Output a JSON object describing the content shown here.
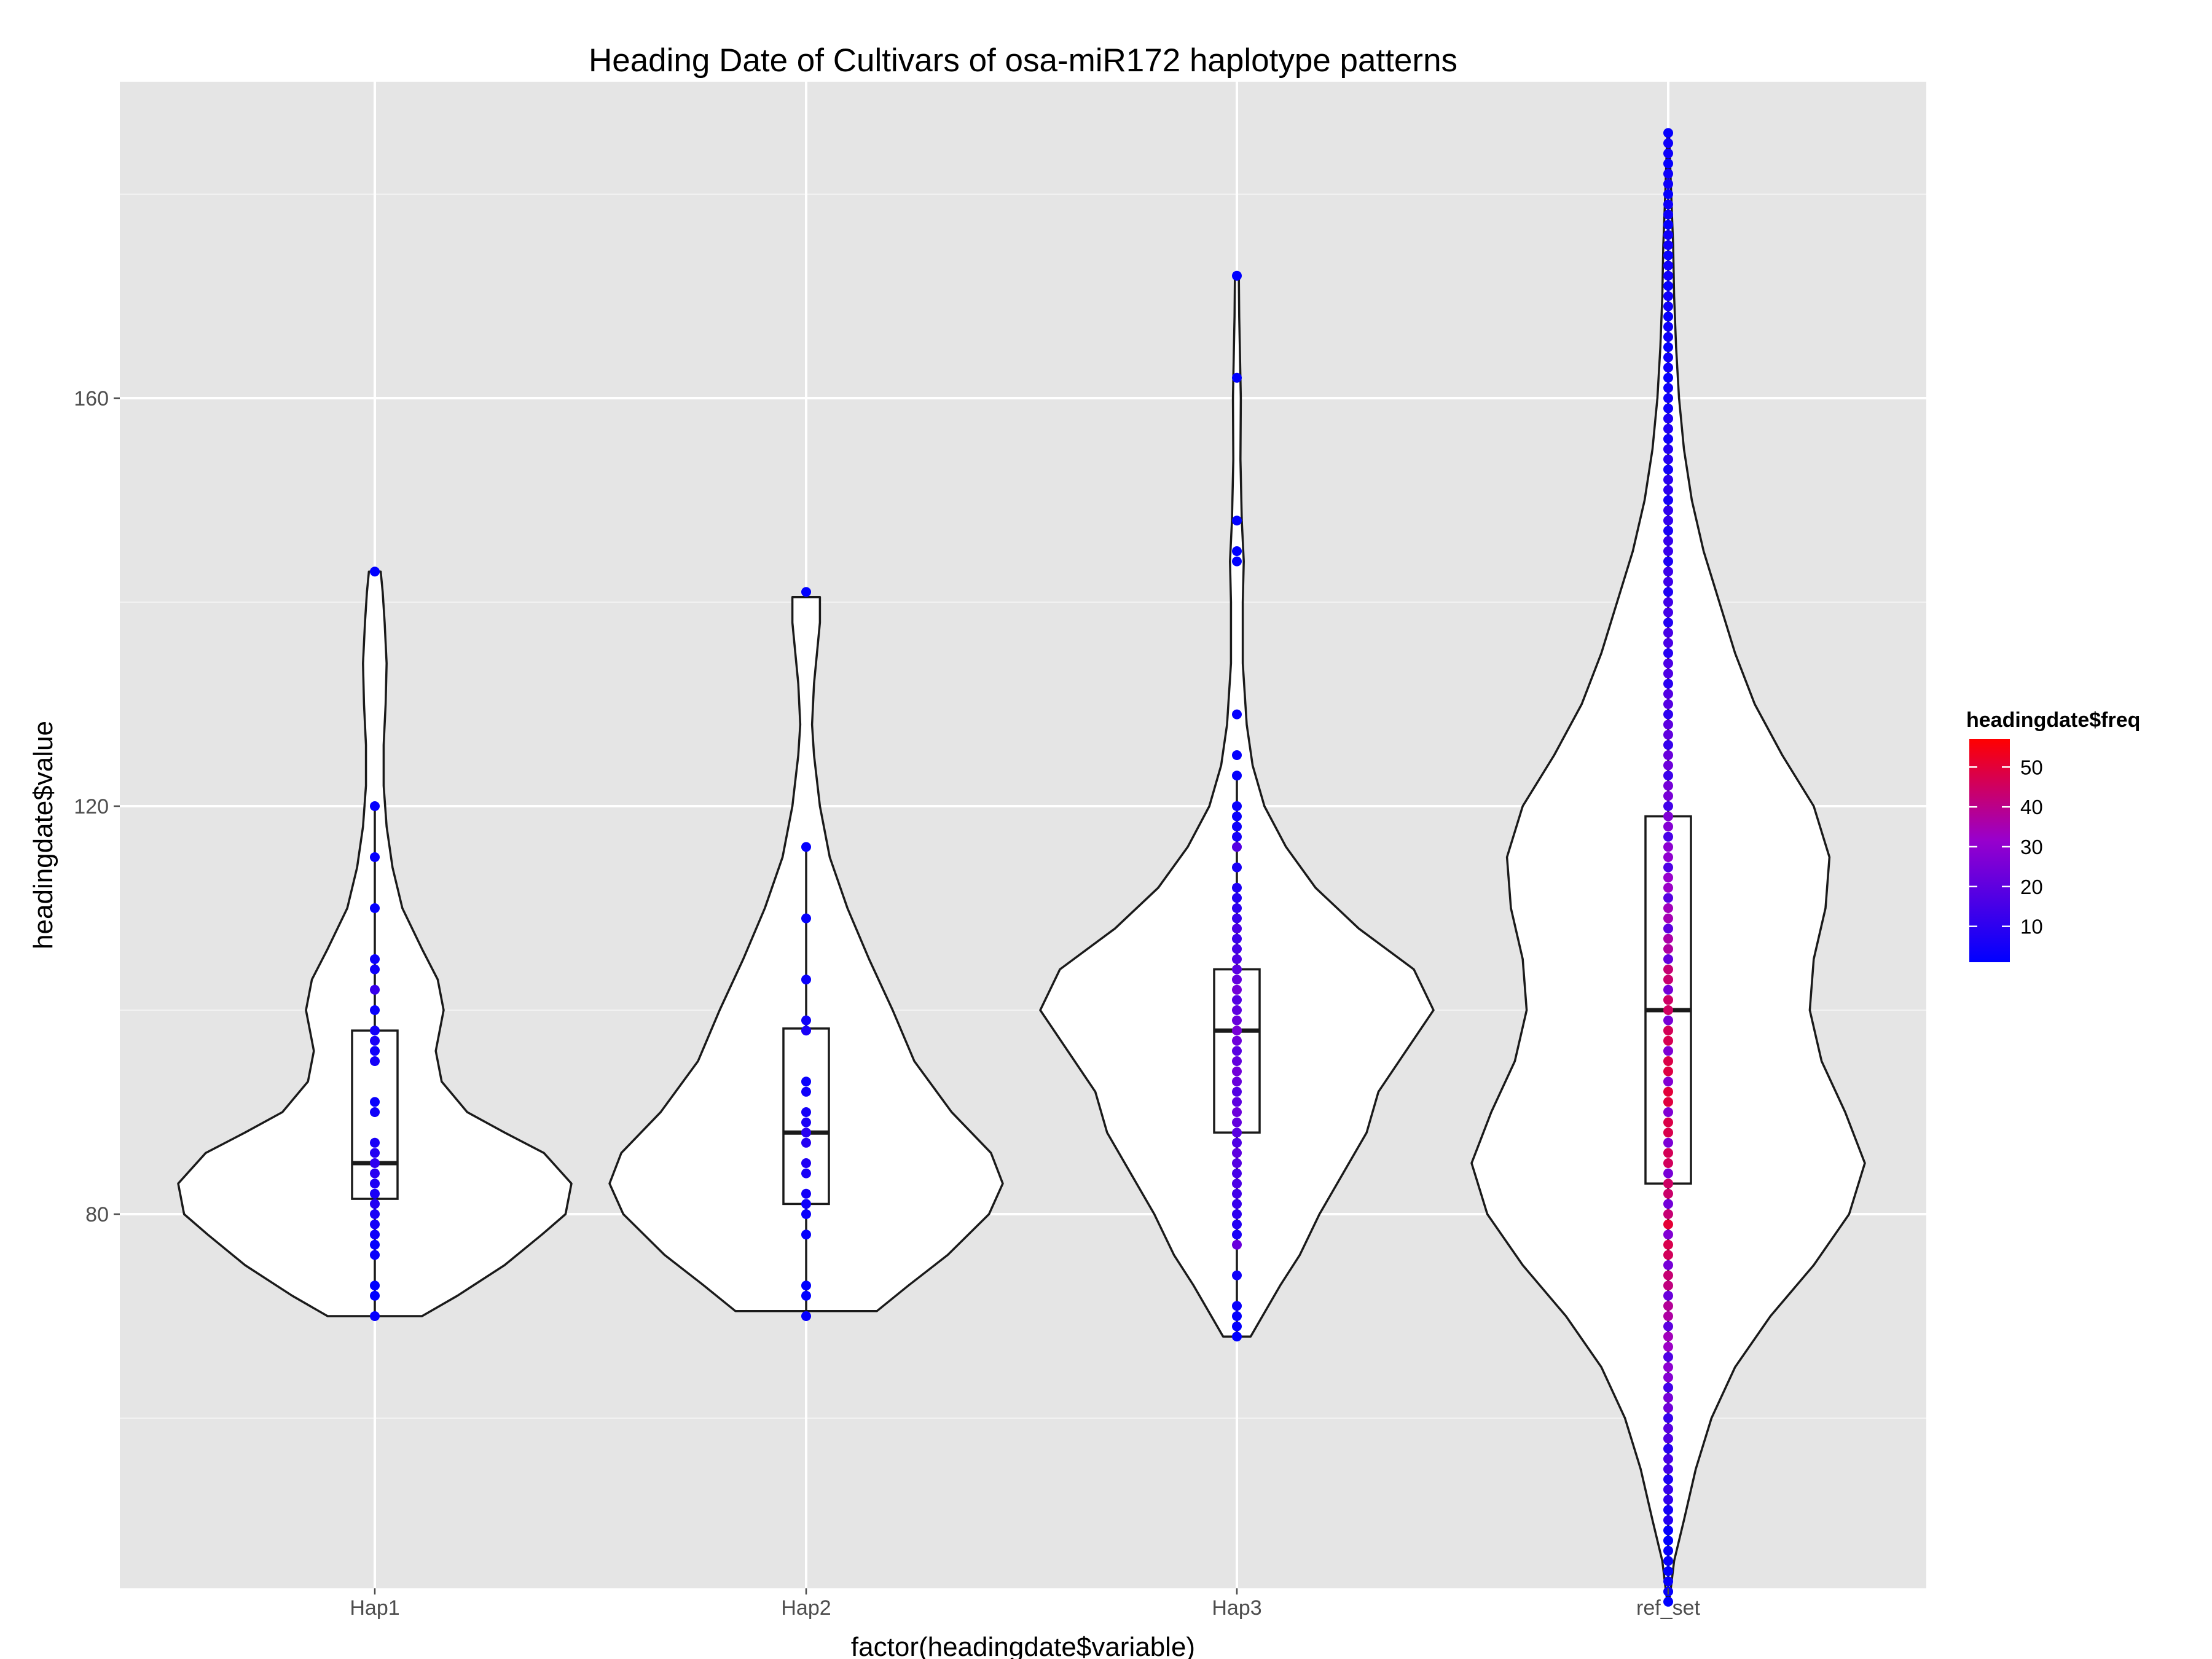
{
  "chart_data": {
    "type": "violin",
    "title": "Heading Date of Cultivars of osa-miR172 haplotype patterns",
    "xlabel": "factor(headingdate$variable)",
    "ylabel": "headingdate$value",
    "categories": [
      "Hap1",
      "Hap2",
      "Hap3",
      "ref_set"
    ],
    "y_ticks": [
      80,
      120,
      160
    ],
    "ylim": [
      42,
      190
    ],
    "grid": true,
    "legend": {
      "title": "headingdate$freq",
      "position": "right",
      "low": 1,
      "high": 57,
      "ticks": [
        10,
        20,
        30,
        40,
        50
      ],
      "low_color": "#0000ff",
      "high_color": "#ff0000"
    },
    "boxes": [
      {
        "name": "Hap1",
        "lower_whisker": 70,
        "q1": 81.5,
        "median": 85,
        "q3": 98,
        "upper_whisker": 120
      },
      {
        "name": "Hap2",
        "lower_whisker": 70,
        "q1": 81,
        "median": 88,
        "q3": 98.2,
        "upper_whisker": 116
      },
      {
        "name": "Hap3",
        "lower_whisker": 68,
        "q1": 88,
        "median": 98,
        "q3": 104,
        "upper_whisker": 123
      },
      {
        "name": "ref_set",
        "lower_whisker": 42,
        "q1": 83,
        "median": 100,
        "q3": 119,
        "upper_whisker": 186
      }
    ],
    "violins": [
      {
        "name": "Hap1",
        "min": 70,
        "max": 143,
        "profile": [
          [
            70,
            0.24
          ],
          [
            72,
            0.42
          ],
          [
            75,
            0.66
          ],
          [
            78,
            0.85
          ],
          [
            80,
            0.97
          ],
          [
            83,
            1.0
          ],
          [
            86,
            0.86
          ],
          [
            88,
            0.66
          ],
          [
            90,
            0.47
          ],
          [
            93,
            0.34
          ],
          [
            96,
            0.31
          ],
          [
            98,
            0.33
          ],
          [
            100,
            0.35
          ],
          [
            103,
            0.32
          ],
          [
            106,
            0.24
          ],
          [
            110,
            0.14
          ],
          [
            114,
            0.09
          ],
          [
            118,
            0.06
          ],
          [
            122,
            0.045
          ],
          [
            126,
            0.045
          ],
          [
            130,
            0.055
          ],
          [
            134,
            0.06
          ],
          [
            138,
            0.05
          ],
          [
            141,
            0.04
          ],
          [
            143,
            0.03
          ]
        ]
      },
      {
        "name": "Hap2",
        "min": 70.5,
        "max": 140.5,
        "profile": [
          [
            70.5,
            0.36
          ],
          [
            73,
            0.52
          ],
          [
            76,
            0.72
          ],
          [
            80,
            0.93
          ],
          [
            83,
            1.0
          ],
          [
            86,
            0.94
          ],
          [
            90,
            0.74
          ],
          [
            95,
            0.55
          ],
          [
            100,
            0.44
          ],
          [
            105,
            0.32
          ],
          [
            110,
            0.21
          ],
          [
            115,
            0.12
          ],
          [
            120,
            0.07
          ],
          [
            125,
            0.04
          ],
          [
            128,
            0.03
          ],
          [
            132,
            0.04
          ],
          [
            136,
            0.06
          ],
          [
            138,
            0.07
          ],
          [
            140.5,
            0.07
          ]
        ]
      },
      {
        "name": "Hap3",
        "min": 68,
        "max": 172,
        "profile": [
          [
            68,
            0.07
          ],
          [
            70,
            0.13
          ],
          [
            73,
            0.22
          ],
          [
            76,
            0.32
          ],
          [
            80,
            0.42
          ],
          [
            84,
            0.54
          ],
          [
            88,
            0.66
          ],
          [
            92,
            0.72
          ],
          [
            96,
            0.86
          ],
          [
            100,
            1.0
          ],
          [
            104,
            0.9
          ],
          [
            108,
            0.62
          ],
          [
            112,
            0.4
          ],
          [
            116,
            0.25
          ],
          [
            120,
            0.14
          ],
          [
            124,
            0.08
          ],
          [
            128,
            0.05
          ],
          [
            134,
            0.03
          ],
          [
            140,
            0.03
          ],
          [
            144,
            0.035
          ],
          [
            148,
            0.025
          ],
          [
            154,
            0.018
          ],
          [
            160,
            0.02
          ],
          [
            165,
            0.015
          ],
          [
            168,
            0.012
          ],
          [
            172,
            0.01
          ]
        ]
      },
      {
        "name": "ref_set",
        "min": 42,
        "max": 186,
        "profile": [
          [
            42,
            0.005
          ],
          [
            46,
            0.03
          ],
          [
            50,
            0.08
          ],
          [
            55,
            0.14
          ],
          [
            60,
            0.22
          ],
          [
            65,
            0.34
          ],
          [
            70,
            0.52
          ],
          [
            75,
            0.74
          ],
          [
            80,
            0.92
          ],
          [
            85,
            1.0
          ],
          [
            90,
            0.9
          ],
          [
            95,
            0.78
          ],
          [
            100,
            0.72
          ],
          [
            105,
            0.74
          ],
          [
            110,
            0.8
          ],
          [
            115,
            0.82
          ],
          [
            120,
            0.74
          ],
          [
            125,
            0.58
          ],
          [
            130,
            0.44
          ],
          [
            135,
            0.34
          ],
          [
            140,
            0.26
          ],
          [
            145,
            0.18
          ],
          [
            150,
            0.12
          ],
          [
            155,
            0.08
          ],
          [
            160,
            0.055
          ],
          [
            165,
            0.04
          ],
          [
            170,
            0.03
          ],
          [
            175,
            0.025
          ],
          [
            180,
            0.015
          ],
          [
            184,
            0.008
          ],
          [
            186,
            0.004
          ]
        ]
      }
    ],
    "points": [
      {
        "name": "Hap1",
        "values": [
          70,
          72,
          73,
          76,
          77,
          78,
          79,
          80,
          81,
          82,
          83,
          84,
          85,
          86,
          87,
          90,
          91,
          95,
          96,
          97,
          98,
          100,
          102,
          104,
          105,
          110,
          115,
          120,
          143
        ],
        "freq": [
          2,
          1,
          1,
          3,
          2,
          4,
          5,
          6,
          8,
          6,
          7,
          9,
          10,
          8,
          6,
          4,
          3,
          5,
          4,
          6,
          5,
          3,
          12,
          4,
          3,
          2,
          2,
          2,
          1
        ]
      },
      {
        "name": "Hap2",
        "values": [
          70,
          72,
          73,
          78,
          80,
          81,
          82,
          84,
          85,
          87,
          88,
          89,
          90,
          92,
          93,
          98,
          99,
          103,
          109,
          116,
          141
        ],
        "freq": [
          2,
          1,
          1,
          2,
          3,
          4,
          5,
          6,
          7,
          8,
          9,
          6,
          5,
          4,
          3,
          6,
          4,
          3,
          2,
          2,
          1
        ]
      },
      {
        "name": "Hap3",
        "values": [
          68,
          69,
          70,
          71,
          74,
          77,
          78,
          79,
          80,
          81,
          82,
          83,
          84,
          85,
          86,
          87,
          88,
          89,
          90,
          91,
          92,
          93,
          94,
          95,
          96,
          97,
          98,
          99,
          100,
          101,
          102,
          103,
          104,
          105,
          106,
          107,
          108,
          109,
          110,
          111,
          112,
          114,
          116,
          117,
          118,
          119,
          120,
          123,
          125,
          129,
          144,
          145,
          148,
          162,
          172
        ],
        "freq": [
          1,
          2,
          2,
          3,
          4,
          22,
          6,
          8,
          10,
          12,
          14,
          16,
          15,
          18,
          20,
          17,
          19,
          21,
          23,
          20,
          18,
          22,
          24,
          21,
          19,
          23,
          25,
          22,
          20,
          18,
          24,
          21,
          19,
          17,
          15,
          13,
          16,
          12,
          10,
          8,
          7,
          6,
          18,
          5,
          4,
          3,
          3,
          2,
          2,
          2,
          1,
          1,
          1,
          1,
          1
        ]
      }
    ],
    "ref_points": {
      "name": "ref_set",
      "min": 42,
      "max": 186,
      "step": 1,
      "note": "dense column of points with frequency peaking near 80-105"
    }
  }
}
